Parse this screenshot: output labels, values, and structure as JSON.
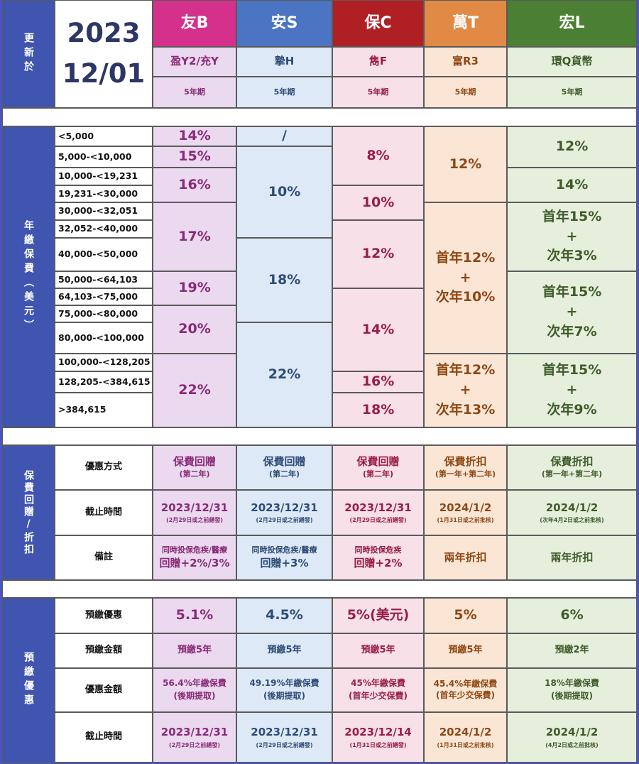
{
  "updated_label": "更新於",
  "updated_year": "2023",
  "updated_date": "12/01",
  "insurers": [
    {
      "name": "友B",
      "plan": "盈Y2/充Y",
      "term": "5年期",
      "color": "#d5308b"
    },
    {
      "name": "安S",
      "plan": "摯H",
      "term": "5年期",
      "color": "#4b74c2"
    },
    {
      "name": "保C",
      "plan": "雋F",
      "term": "5年期",
      "color": "#b01f23"
    },
    {
      "name": "萬T",
      "plan": "富R3",
      "term": "5年期",
      "color": "#e08a46"
    },
    {
      "name": "宏L",
      "plan": "環Q貨幣",
      "term": "5年期",
      "color": "#4b7f33"
    }
  ],
  "premium_section_label": "年繳保費（美元）",
  "ranges": [
    "<5,000",
    "5,000-<10,000",
    "10,000-<19,231",
    "19,231-<30,000",
    "30,000-<32,051",
    "32,052-<40,000",
    "40,000-<50,000",
    "50,000-<64,103",
    "64,103-<75,000",
    "75,000-<80,000",
    "80,000-<100,000",
    "100,000-<128,205",
    "128,205-<384,615",
    ">384,615"
  ],
  "rates": {
    "friend": [
      "14%",
      "15%",
      "16%",
      "17%",
      "19%",
      "20%",
      "22%"
    ],
    "an": [
      "/",
      "10%",
      "18%",
      "22%"
    ],
    "bao": [
      "8%",
      "10%",
      "12%",
      "14%",
      "16%",
      "18%"
    ],
    "wan": {
      "r1": "12%",
      "r2a": "首年12%",
      "r2b": "+",
      "r2c": "次年10%",
      "r3a": "首年12%",
      "r3b": "+",
      "r3c": "次年13%"
    },
    "hong": {
      "r1": "12%",
      "r2": "14%",
      "r3a": "首年15%",
      "r3b": "+",
      "r3c": "次年3%",
      "r4a": "首年15%",
      "r4b": "+",
      "r4c": "次年7%",
      "r5a": "首年15%",
      "r5b": "+",
      "r5c": "次年9%"
    }
  },
  "rebate_section_label": "保費回贈/折扣",
  "rebate_rows": {
    "method": "優惠方式",
    "deadline": "截止時間",
    "remark": "備註"
  },
  "rebate": {
    "method": [
      {
        "main": "保費回贈",
        "sub": "(第二年)"
      },
      {
        "main": "保費回贈",
        "sub": "(第二年)"
      },
      {
        "main": "保費回贈",
        "sub": "(第二年)"
      },
      {
        "main": "保費折扣",
        "sub": "(第一年+第二年)"
      },
      {
        "main": "保費折扣",
        "sub": "(第一年+第二年)"
      }
    ],
    "deadline": [
      {
        "main": "2023/12/31",
        "sub": "(2月29日或之前繕發)"
      },
      {
        "main": "2023/12/31",
        "sub": "(2月29日或之前繕發)"
      },
      {
        "main": "2023/12/31",
        "sub": "(2月29日或之前繕發)"
      },
      {
        "main": "2024/1/2",
        "sub": "(1月31日或之前批核)"
      },
      {
        "main": "2024/1/2",
        "sub": "(次年4月2日或之前批核)"
      }
    ],
    "remark": [
      {
        "l1": "同時投保危疾/醫療",
        "l2": "回贈+2%/3%"
      },
      {
        "l1": "同時投保危疾/醫療",
        "l2": "回贈+3%"
      },
      {
        "l1": "同時投保危疾",
        "l2": "回贈+2%"
      },
      {
        "l1": "兩年折扣",
        "l2": ""
      },
      {
        "l1": "兩年折扣",
        "l2": ""
      }
    ]
  },
  "prepay_section_label": "預繳優惠",
  "prepay_rows": {
    "offer": "預繳優惠",
    "amount": "預繳金額",
    "discount": "優惠金額",
    "deadline": "截止時間"
  },
  "prepay": {
    "offer": [
      "5.1%",
      "4.5%",
      "5%(美元)",
      "5%",
      "6%"
    ],
    "amount": [
      "預繳5年",
      "預繳5年",
      "預繳5年",
      "預繳5年",
      "預繳2年"
    ],
    "discount": [
      {
        "l1": "56.4%年繳保費",
        "l2": "(後期提取)"
      },
      {
        "l1": "49.19%年繳保費",
        "l2": "(後期提取)"
      },
      {
        "l1": "45%年繳保費",
        "l2": "(首年少交保費)"
      },
      {
        "l1": "45.4%年繳保費",
        "l2": "(首年少交保費)"
      },
      {
        "l1": "18%年繳保費",
        "l2": "(後期提取)"
      }
    ],
    "deadline": [
      {
        "main": "2023/12/31",
        "sub": "(2月29日之前繕發)"
      },
      {
        "main": "2023/12/31",
        "sub": "(2月29日或之前繕發)"
      },
      {
        "main": "2023/12/14",
        "sub": "(1月31日或之前繕發)"
      },
      {
        "main": "2024/1/2",
        "sub": "(1月31日或之前批核)"
      },
      {
        "main": "2024/1/2",
        "sub": "(4月2日或之前批核)"
      }
    ]
  }
}
